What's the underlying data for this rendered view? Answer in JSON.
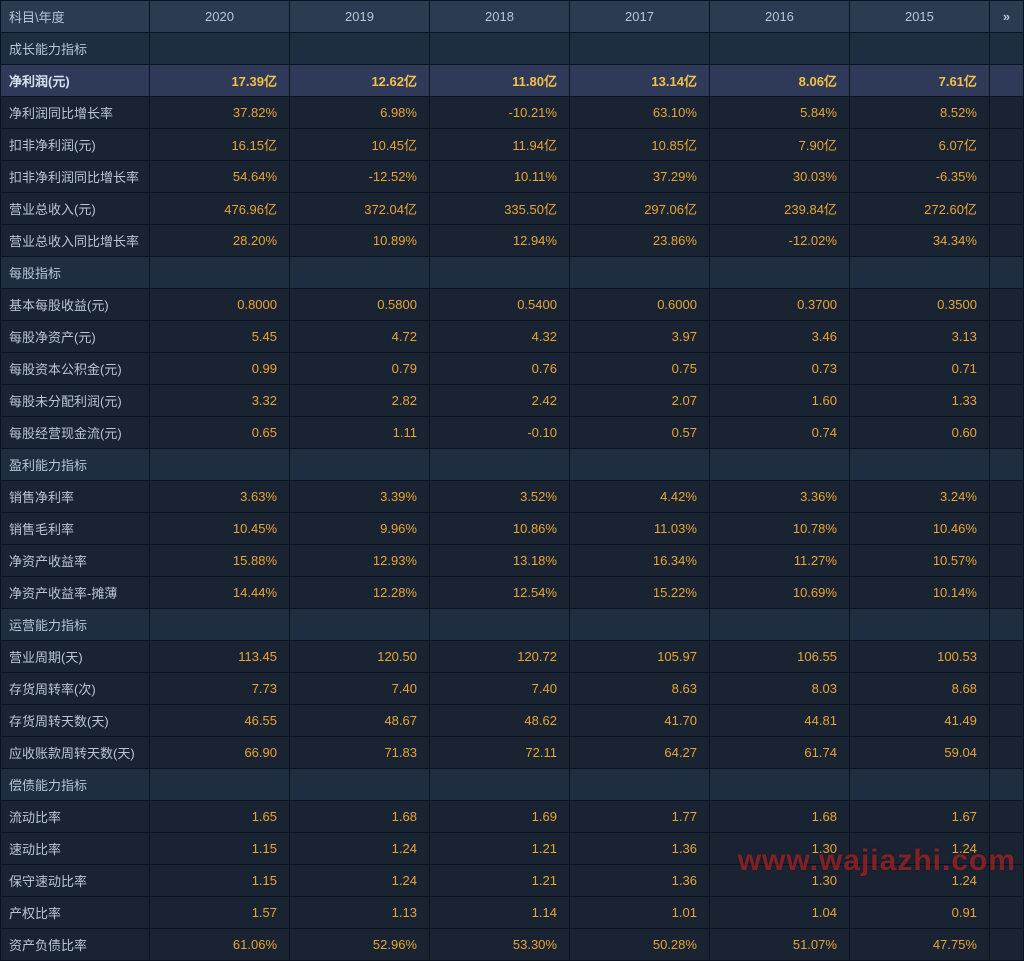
{
  "header": {
    "label": "科目\\年度",
    "years": [
      "2020",
      "2019",
      "2018",
      "2017",
      "2016",
      "2015"
    ]
  },
  "watermark": "www.wajiazhi.com",
  "colors": {
    "page_bg": "#1a2332",
    "header_bg": "#2a3b52",
    "section_bg": "#1f2d40",
    "highlight_bg": "#2e3a58",
    "border": "#0a1420",
    "text": "#b8c5d6",
    "value": "#e6a635",
    "highlight_value": "#f5c04a",
    "watermark": "rgba(220,40,40,0.55)"
  },
  "sections": [
    {
      "title": "成长能力指标",
      "rows": [
        {
          "label": "净利润(元)",
          "highlight": true,
          "vals": [
            "17.39亿",
            "12.62亿",
            "11.80亿",
            "13.14亿",
            "8.06亿",
            "7.61亿"
          ]
        },
        {
          "label": "净利润同比增长率",
          "vals": [
            "37.82%",
            "6.98%",
            "-10.21%",
            "63.10%",
            "5.84%",
            "8.52%"
          ]
        },
        {
          "label": "扣非净利润(元)",
          "vals": [
            "16.15亿",
            "10.45亿",
            "11.94亿",
            "10.85亿",
            "7.90亿",
            "6.07亿"
          ]
        },
        {
          "label": "扣非净利润同比增长率",
          "vals": [
            "54.64%",
            "-12.52%",
            "10.11%",
            "37.29%",
            "30.03%",
            "-6.35%"
          ]
        },
        {
          "label": "营业总收入(元)",
          "vals": [
            "476.96亿",
            "372.04亿",
            "335.50亿",
            "297.06亿",
            "239.84亿",
            "272.60亿"
          ]
        },
        {
          "label": "营业总收入同比增长率",
          "vals": [
            "28.20%",
            "10.89%",
            "12.94%",
            "23.86%",
            "-12.02%",
            "34.34%"
          ]
        }
      ]
    },
    {
      "title": "每股指标",
      "rows": [
        {
          "label": "基本每股收益(元)",
          "vals": [
            "0.8000",
            "0.5800",
            "0.5400",
            "0.6000",
            "0.3700",
            "0.3500"
          ]
        },
        {
          "label": "每股净资产(元)",
          "vals": [
            "5.45",
            "4.72",
            "4.32",
            "3.97",
            "3.46",
            "3.13"
          ]
        },
        {
          "label": "每股资本公积金(元)",
          "vals": [
            "0.99",
            "0.79",
            "0.76",
            "0.75",
            "0.73",
            "0.71"
          ]
        },
        {
          "label": "每股未分配利润(元)",
          "vals": [
            "3.32",
            "2.82",
            "2.42",
            "2.07",
            "1.60",
            "1.33"
          ]
        },
        {
          "label": "每股经营现金流(元)",
          "vals": [
            "0.65",
            "1.11",
            "-0.10",
            "0.57",
            "0.74",
            "0.60"
          ]
        }
      ]
    },
    {
      "title": "盈利能力指标",
      "rows": [
        {
          "label": "销售净利率",
          "vals": [
            "3.63%",
            "3.39%",
            "3.52%",
            "4.42%",
            "3.36%",
            "3.24%"
          ]
        },
        {
          "label": "销售毛利率",
          "vals": [
            "10.45%",
            "9.96%",
            "10.86%",
            "11.03%",
            "10.78%",
            "10.46%"
          ]
        },
        {
          "label": "净资产收益率",
          "vals": [
            "15.88%",
            "12.93%",
            "13.18%",
            "16.34%",
            "11.27%",
            "10.57%"
          ]
        },
        {
          "label": "净资产收益率-摊薄",
          "vals": [
            "14.44%",
            "12.28%",
            "12.54%",
            "15.22%",
            "10.69%",
            "10.14%"
          ]
        }
      ]
    },
    {
      "title": "运营能力指标",
      "rows": [
        {
          "label": "营业周期(天)",
          "vals": [
            "113.45",
            "120.50",
            "120.72",
            "105.97",
            "106.55",
            "100.53"
          ]
        },
        {
          "label": "存货周转率(次)",
          "vals": [
            "7.73",
            "7.40",
            "7.40",
            "8.63",
            "8.03",
            "8.68"
          ]
        },
        {
          "label": "存货周转天数(天)",
          "vals": [
            "46.55",
            "48.67",
            "48.62",
            "41.70",
            "44.81",
            "41.49"
          ]
        },
        {
          "label": "应收账款周转天数(天)",
          "vals": [
            "66.90",
            "71.83",
            "72.11",
            "64.27",
            "61.74",
            "59.04"
          ]
        }
      ]
    },
    {
      "title": "偿债能力指标",
      "rows": [
        {
          "label": "流动比率",
          "vals": [
            "1.65",
            "1.68",
            "1.69",
            "1.77",
            "1.68",
            "1.67"
          ]
        },
        {
          "label": "速动比率",
          "vals": [
            "1.15",
            "1.24",
            "1.21",
            "1.36",
            "1.30",
            "1.24"
          ]
        },
        {
          "label": "保守速动比率",
          "vals": [
            "1.15",
            "1.24",
            "1.21",
            "1.36",
            "1.30",
            "1.24"
          ]
        },
        {
          "label": "产权比率",
          "vals": [
            "1.57",
            "1.13",
            "1.14",
            "1.01",
            "1.04",
            "0.91"
          ]
        },
        {
          "label": "资产负债比率",
          "vals": [
            "61.06%",
            "52.96%",
            "53.30%",
            "50.28%",
            "51.07%",
            "47.75%"
          ]
        }
      ]
    }
  ]
}
